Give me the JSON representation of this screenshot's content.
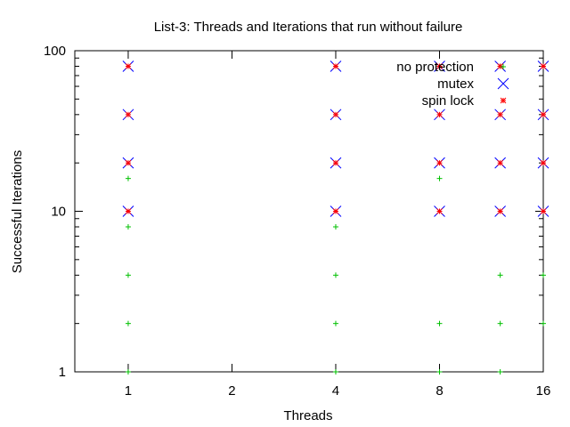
{
  "chart_data": {
    "type": "scatter",
    "title": "List-3: Threads and Iterations that run without failure",
    "xlabel": "Threads",
    "ylabel": "Successful Iterations",
    "x_scale": "log2",
    "y_scale": "log10",
    "xlim": [
      0.7,
      16
    ],
    "ylim": [
      1,
      100
    ],
    "x_ticks": [
      1,
      2,
      4,
      8,
      16
    ],
    "x_tick_labels": [
      "1",
      "2",
      "4",
      "8",
      "16"
    ],
    "y_ticks": [
      1,
      10,
      100
    ],
    "y_tick_labels": [
      "1",
      "10",
      "100"
    ],
    "grid": false,
    "legend_position": "top-right",
    "series": [
      {
        "name": "no protection",
        "marker": "plus",
        "color": "#00c000",
        "points": [
          [
            1,
            1
          ],
          [
            1,
            2
          ],
          [
            1,
            4
          ],
          [
            1,
            8
          ],
          [
            1,
            16
          ],
          [
            4,
            1
          ],
          [
            4,
            2
          ],
          [
            4,
            4
          ],
          [
            4,
            8
          ],
          [
            8,
            1
          ],
          [
            8,
            2
          ],
          [
            8,
            16
          ],
          [
            12,
            1
          ],
          [
            12,
            2
          ],
          [
            12,
            4
          ],
          [
            12,
            80
          ],
          [
            16,
            2
          ],
          [
            16,
            4
          ]
        ]
      },
      {
        "name": "mutex",
        "marker": "cross",
        "color": "#0000ff",
        "points": [
          [
            1,
            10
          ],
          [
            1,
            20
          ],
          [
            1,
            40
          ],
          [
            1,
            80
          ],
          [
            4,
            10
          ],
          [
            4,
            20
          ],
          [
            4,
            40
          ],
          [
            4,
            80
          ],
          [
            8,
            10
          ],
          [
            8,
            20
          ],
          [
            8,
            40
          ],
          [
            8,
            80
          ],
          [
            12,
            10
          ],
          [
            12,
            20
          ],
          [
            12,
            40
          ],
          [
            12,
            80
          ],
          [
            16,
            10
          ],
          [
            16,
            20
          ],
          [
            16,
            40
          ],
          [
            16,
            80
          ]
        ]
      },
      {
        "name": "spin lock",
        "marker": "star",
        "color": "#ff0000",
        "points": [
          [
            1,
            10
          ],
          [
            1,
            20
          ],
          [
            1,
            40
          ],
          [
            1,
            80
          ],
          [
            4,
            10
          ],
          [
            4,
            20
          ],
          [
            4,
            40
          ],
          [
            4,
            80
          ],
          [
            8,
            10
          ],
          [
            8,
            20
          ],
          [
            8,
            40
          ],
          [
            8,
            80
          ],
          [
            12,
            10
          ],
          [
            12,
            20
          ],
          [
            12,
            40
          ],
          [
            12,
            80
          ],
          [
            16,
            10
          ],
          [
            16,
            20
          ],
          [
            16,
            40
          ],
          [
            16,
            80
          ]
        ]
      }
    ]
  }
}
